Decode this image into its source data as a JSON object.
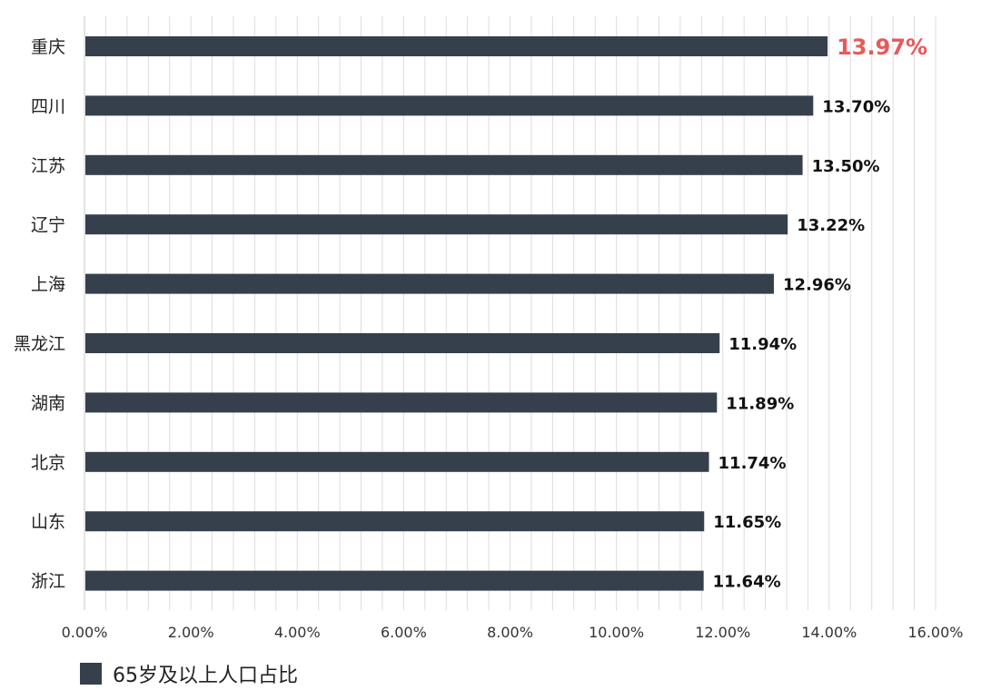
{
  "chart_data": {
    "type": "bar",
    "orientation": "horizontal",
    "categories": [
      "重庆",
      "四川",
      "江苏",
      "辽宁",
      "上海",
      "黑龙江",
      "湖南",
      "北京",
      "山东",
      "浙江"
    ],
    "series": [
      {
        "name": "65岁及以上人口占比",
        "values": [
          13.97,
          13.7,
          13.5,
          13.22,
          12.96,
          11.94,
          11.89,
          11.74,
          11.65,
          11.64
        ],
        "data_labels": [
          "13.97%",
          "13.70%",
          "13.50%",
          "13.22%",
          "12.96%",
          "11.94%",
          "11.89%",
          "11.74%",
          "11.65%",
          "11.64%"
        ]
      }
    ],
    "highlight_index": 0,
    "xlim": [
      0,
      16
    ],
    "xticks": [
      0,
      2,
      4,
      6,
      8,
      10,
      12,
      14,
      16
    ],
    "xtick_labels": [
      "0.00%",
      "2.00%",
      "4.00%",
      "6.00%",
      "8.00%",
      "10.00%",
      "12.00%",
      "14.00%",
      "16.00%"
    ],
    "minor_grid_step": 0.4,
    "grid": true,
    "legend_position": "bottom-left",
    "colors": {
      "bar": "#36404d",
      "highlight_label": "#e8595a",
      "label": "#111111",
      "tick": "#333333",
      "grid": "#dcdcdc"
    }
  }
}
